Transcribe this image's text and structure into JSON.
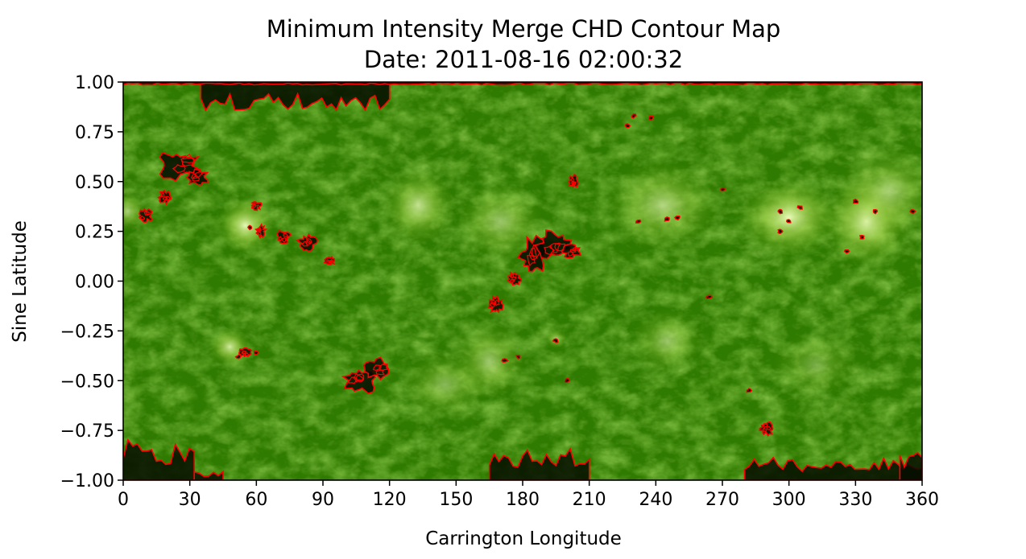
{
  "chart_data": {
    "type": "heatmap",
    "title": "Minimum Intensity Merge CHD Contour Map",
    "subtitle": "Date: 2011-08-16 02:00:32",
    "xlabel": "Carrington Longitude",
    "ylabel": "Sine Latitude",
    "xlim": [
      0,
      360
    ],
    "ylim": [
      -1.0,
      1.0
    ],
    "xticks": [
      "0",
      "30",
      "60",
      "90",
      "120",
      "150",
      "180",
      "210",
      "240",
      "270",
      "300",
      "330",
      "360"
    ],
    "yticks": [
      "1.00",
      "0.75",
      "0.50",
      "0.25",
      "0.00",
      "−0.25",
      "−0.50",
      "−0.75",
      "−1.00"
    ],
    "grid": false,
    "colormap": {
      "dark": "#0a1a00",
      "base": "#2f7a00",
      "bright": "#e8ffb0"
    },
    "contour_color": "#ff0000",
    "bright_regions": [
      {
        "lon": 55,
        "lat": 0.28,
        "strength": 1.0,
        "rlon": 8,
        "rlat": 0.09
      },
      {
        "lon": 48,
        "lat": -0.33,
        "strength": 0.9,
        "rlon": 6,
        "rlat": 0.06
      },
      {
        "lon": 133,
        "lat": 0.38,
        "strength": 0.8,
        "rlon": 10,
        "rlat": 0.12
      },
      {
        "lon": 170,
        "lat": 0.3,
        "strength": 0.6,
        "rlon": 12,
        "rlat": 0.12
      },
      {
        "lon": 165,
        "lat": -0.4,
        "strength": 0.6,
        "rlon": 10,
        "rlat": 0.12
      },
      {
        "lon": 145,
        "lat": -0.52,
        "strength": 0.5,
        "rlon": 12,
        "rlat": 0.1
      },
      {
        "lon": 243,
        "lat": 0.38,
        "strength": 0.7,
        "rlon": 16,
        "rlat": 0.14
      },
      {
        "lon": 245,
        "lat": -0.3,
        "strength": 0.55,
        "rlon": 10,
        "rlat": 0.1
      },
      {
        "lon": 300,
        "lat": 0.32,
        "strength": 1.0,
        "rlon": 14,
        "rlat": 0.12
      },
      {
        "lon": 335,
        "lat": 0.3,
        "strength": 1.0,
        "rlon": 12,
        "rlat": 0.14
      },
      {
        "lon": 345,
        "lat": 0.45,
        "strength": 0.6,
        "rlon": 14,
        "rlat": 0.14
      },
      {
        "lon": 312,
        "lat": -0.42,
        "strength": 0.4,
        "rlon": 12,
        "rlat": 0.1
      },
      {
        "lon": 195,
        "lat": -0.29,
        "strength": 0.7,
        "rlon": 3,
        "rlat": 0.03
      },
      {
        "lon": 2,
        "lat": 0.35,
        "strength": 0.6,
        "rlon": 5,
        "rlat": 0.06
      }
    ],
    "coronal_holes": [
      {
        "lon": 25,
        "lat": 0.58,
        "rlon": 9,
        "rlat": 0.07
      },
      {
        "lon": 33,
        "lat": 0.52,
        "rlon": 5,
        "rlat": 0.04
      },
      {
        "lon": 19,
        "lat": 0.42,
        "rlon": 3,
        "rlat": 0.03
      },
      {
        "lon": 10,
        "lat": 0.33,
        "rlon": 3,
        "rlat": 0.03
      },
      {
        "lon": 62,
        "lat": 0.25,
        "rlon": 2,
        "rlat": 0.03
      },
      {
        "lon": 72,
        "lat": 0.22,
        "rlon": 3,
        "rlat": 0.03
      },
      {
        "lon": 83,
        "lat": 0.19,
        "rlon": 4,
        "rlat": 0.04
      },
      {
        "lon": 93,
        "lat": 0.1,
        "rlon": 2,
        "rlat": 0.02
      },
      {
        "lon": 185,
        "lat": 0.12,
        "rlon": 6,
        "rlat": 0.09
      },
      {
        "lon": 194,
        "lat": 0.18,
        "rlon": 7,
        "rlat": 0.07
      },
      {
        "lon": 202,
        "lat": 0.15,
        "rlon": 4,
        "rlat": 0.03
      },
      {
        "lon": 176,
        "lat": 0.01,
        "rlon": 3,
        "rlat": 0.03
      },
      {
        "lon": 168,
        "lat": -0.12,
        "rlon": 3,
        "rlat": 0.04
      },
      {
        "lon": 203,
        "lat": 0.5,
        "rlon": 2,
        "rlat": 0.03
      },
      {
        "lon": 107,
        "lat": -0.5,
        "rlon": 7,
        "rlat": 0.06
      },
      {
        "lon": 115,
        "lat": -0.44,
        "rlon": 6,
        "rlat": 0.05
      },
      {
        "lon": 290,
        "lat": -0.74,
        "rlon": 3,
        "rlat": 0.03
      },
      {
        "lon": 55,
        "lat": -0.36,
        "rlon": 3,
        "rlat": 0.02
      },
      {
        "lon": 60,
        "lat": 0.38,
        "rlon": 2,
        "rlat": 0.02
      }
    ],
    "polar_holes": [
      {
        "lon_start": 0,
        "lon_end": 32,
        "lat_edge": -0.86,
        "pole": "south"
      },
      {
        "lon_start": 32,
        "lon_end": 45,
        "lat_edge": -0.97,
        "pole": "south"
      },
      {
        "lon_start": 165,
        "lon_end": 210,
        "lat_edge": -0.89,
        "pole": "south"
      },
      {
        "lon_start": 280,
        "lon_end": 360,
        "lat_edge": -0.92,
        "pole": "south"
      },
      {
        "lon_start": 350,
        "lon_end": 360,
        "lat_edge": -0.9,
        "pole": "south"
      },
      {
        "lon_start": 35,
        "lon_end": 120,
        "lat_edge": 0.9,
        "pole": "north"
      },
      {
        "lon_start": 0,
        "lon_end": 360,
        "lat_edge": 0.99,
        "pole": "north"
      }
    ],
    "speckles": [
      {
        "lon": 232,
        "lat": 0.3
      },
      {
        "lon": 245,
        "lat": 0.31
      },
      {
        "lon": 250,
        "lat": 0.32
      },
      {
        "lon": 296,
        "lat": 0.35
      },
      {
        "lon": 300,
        "lat": 0.3
      },
      {
        "lon": 305,
        "lat": 0.37
      },
      {
        "lon": 296,
        "lat": 0.25
      },
      {
        "lon": 330,
        "lat": 0.4
      },
      {
        "lon": 333,
        "lat": 0.22
      },
      {
        "lon": 326,
        "lat": 0.15
      },
      {
        "lon": 339,
        "lat": 0.35
      },
      {
        "lon": 356,
        "lat": 0.35
      },
      {
        "lon": 178,
        "lat": -0.38
      },
      {
        "lon": 172,
        "lat": -0.4
      },
      {
        "lon": 195,
        "lat": -0.3
      },
      {
        "lon": 200,
        "lat": -0.5
      },
      {
        "lon": 227,
        "lat": 0.78
      },
      {
        "lon": 230,
        "lat": 0.83
      },
      {
        "lon": 282,
        "lat": -0.55
      },
      {
        "lon": 270,
        "lat": 0.46
      },
      {
        "lon": 264,
        "lat": -0.08
      },
      {
        "lon": 52,
        "lat": -0.38
      },
      {
        "lon": 60,
        "lat": -0.36
      },
      {
        "lon": 57,
        "lat": 0.27
      },
      {
        "lon": 238,
        "lat": 0.82
      }
    ]
  }
}
